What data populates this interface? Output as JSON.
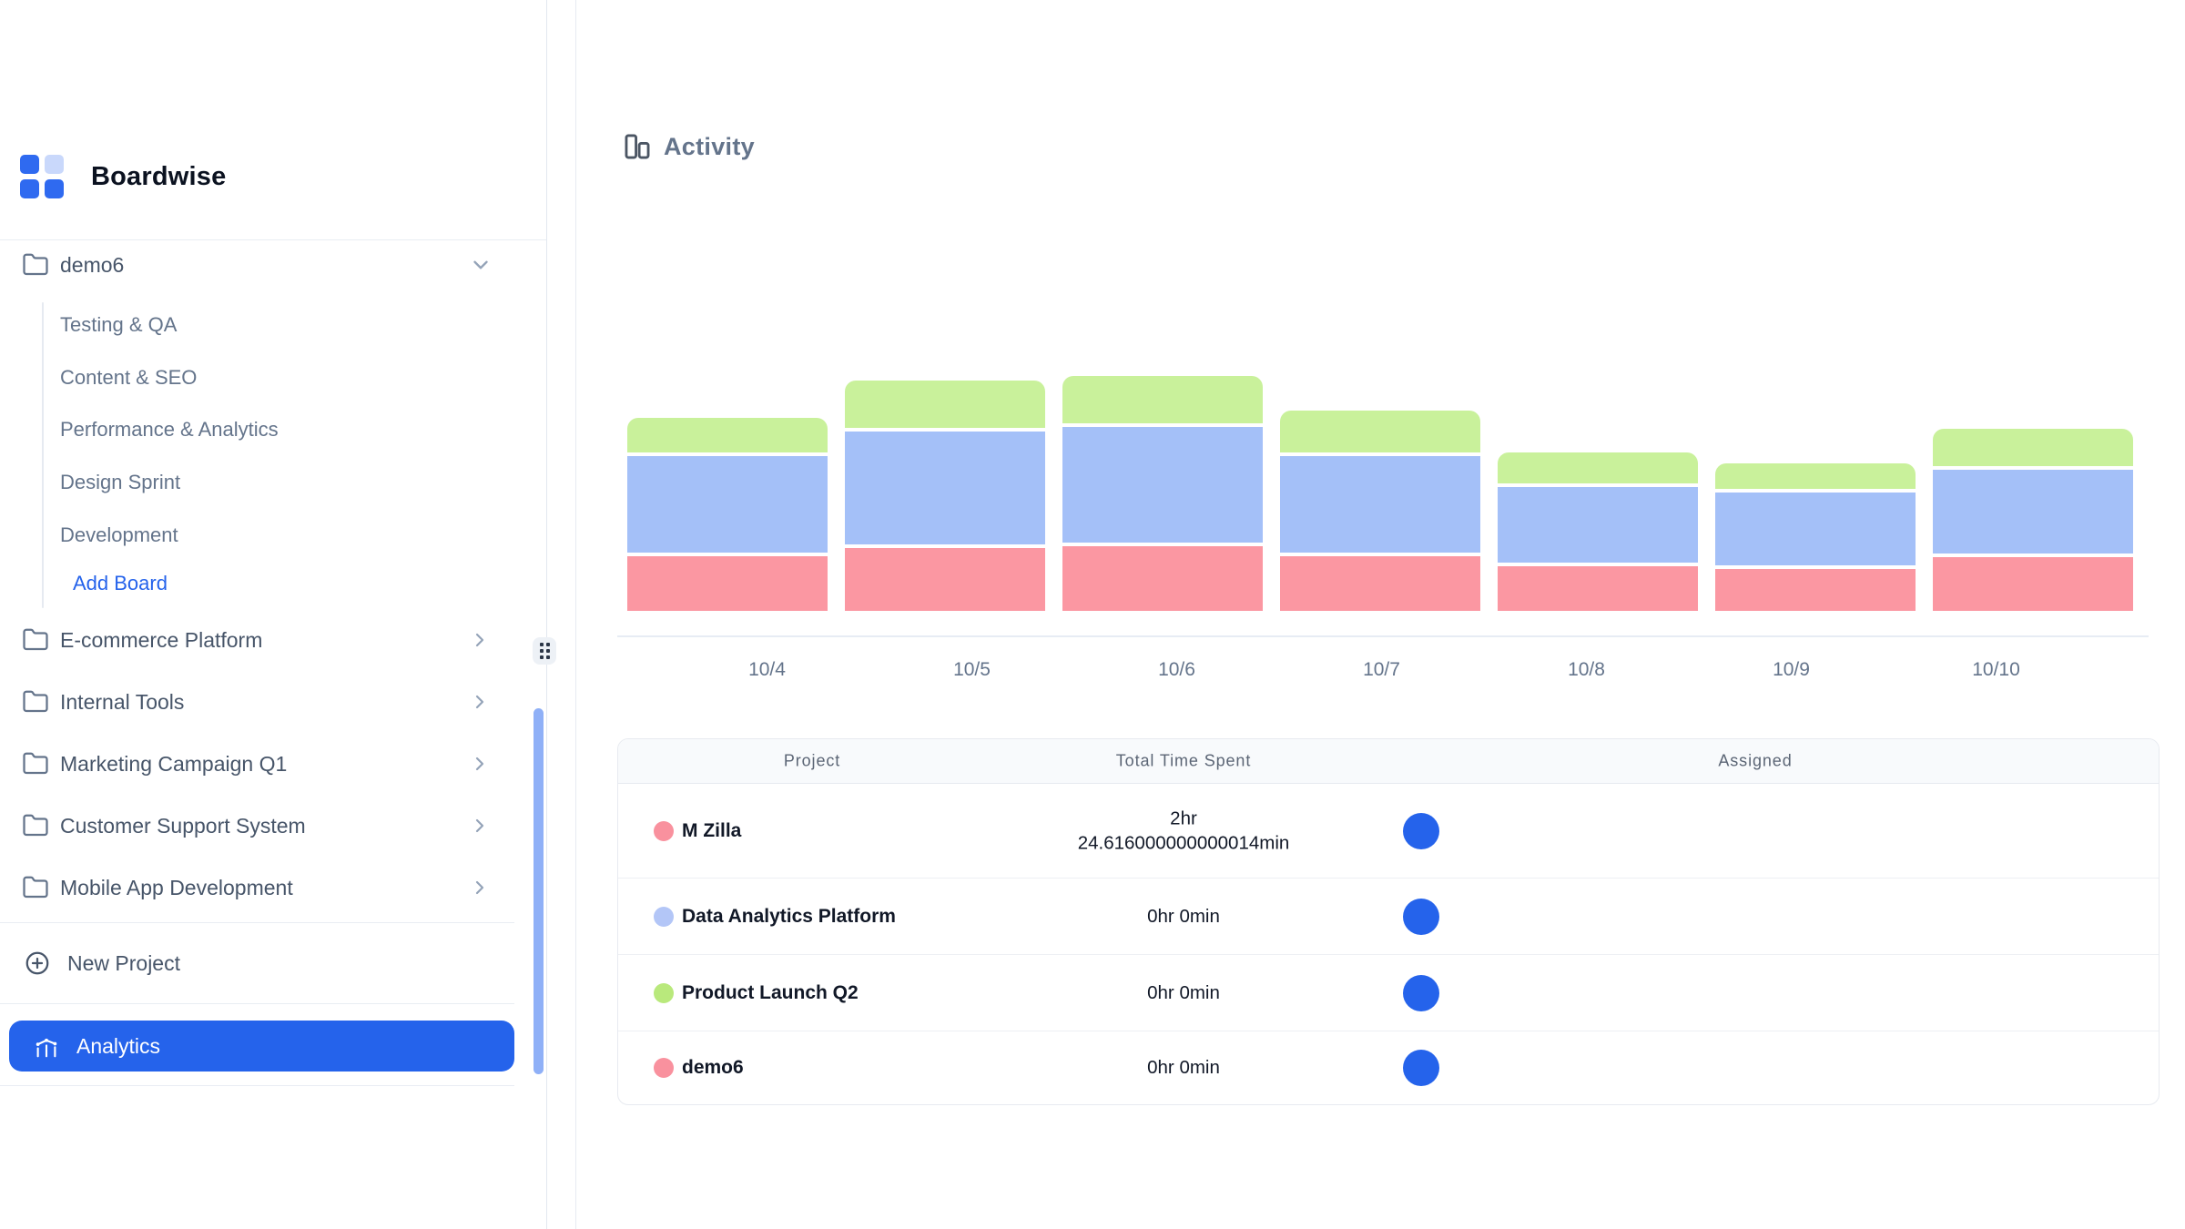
{
  "app": {
    "brand": "Boardwise"
  },
  "colors": {
    "accent_blue": "#2563eb",
    "logo_light_blue": "#c9d8fb",
    "scrollbar_blue": "#8fb0f7",
    "chart_pink": "#fb97a2",
    "chart_blue": "#a4c0f8",
    "chart_green": "#c9f19b",
    "avatar_blue": "#2563eb"
  },
  "sidebar": {
    "active_project": {
      "label": "demo6"
    },
    "boards": [
      "Testing & QA",
      "Content & SEO",
      "Performance & Analytics",
      "Design Sprint",
      "Development"
    ],
    "add_board_label": "Add Board",
    "projects": [
      "E-commerce Platform",
      "Internal Tools",
      "Marketing Campaign Q1",
      "Customer Support System",
      "Mobile App Development"
    ],
    "new_project_label": "New Project",
    "analytics_label": "Analytics"
  },
  "main": {
    "activity_title": "Activity"
  },
  "chart_data": {
    "type": "bar",
    "stacked": true,
    "title": "Activity",
    "categories": [
      "10/4",
      "10/5",
      "10/6",
      "10/7",
      "10/8",
      "10/9",
      "10/10"
    ],
    "series": [
      {
        "name": "M Zilla / demo6 (pink)",
        "color": "#fb97a2",
        "stack_position": "bottom",
        "values": [
          60,
          69,
          71,
          60,
          49,
          46,
          59
        ]
      },
      {
        "name": "Data Analytics Platform (blue)",
        "color": "#a4c0f8",
        "stack_position": "middle",
        "values": [
          106,
          124,
          127,
          106,
          83,
          80,
          92
        ]
      },
      {
        "name": "Product Launch Q2 (green)",
        "color": "#c9f19b",
        "stack_position": "top",
        "values": [
          38,
          52,
          52,
          46,
          34,
          28,
          41
        ]
      }
    ],
    "units": "relative bar-segment height, px (estimated; chart shows no y-axis labels)",
    "xlabel": "",
    "ylabel": "",
    "grid": false,
    "legend": "none"
  },
  "table": {
    "columns": [
      "Project",
      "Total Time Spent",
      "Assigned"
    ],
    "rows": [
      {
        "project": "M Zilla",
        "dot_color": "#f9919e",
        "time_lines": [
          "2hr",
          "24.616000000000014min"
        ],
        "assigned_avatar_color": "#2563eb"
      },
      {
        "project": "Data Analytics Platform",
        "dot_color": "#b3c6f7",
        "time_lines": [
          "0hr 0min"
        ],
        "assigned_avatar_color": "#2563eb"
      },
      {
        "project": "Product Launch Q2",
        "dot_color": "#b9e97c",
        "time_lines": [
          "0hr 0min"
        ],
        "assigned_avatar_color": "#2563eb"
      },
      {
        "project": "demo6",
        "dot_color": "#f9919e",
        "time_lines": [
          "0hr 0min"
        ],
        "assigned_avatar_color": "#2563eb"
      }
    ]
  }
}
